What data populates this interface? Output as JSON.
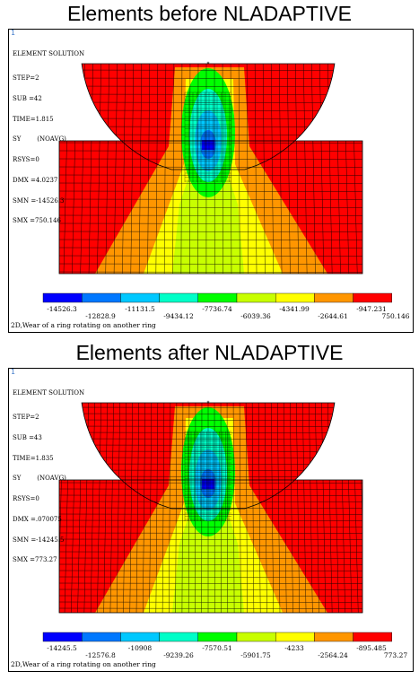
{
  "headings": {
    "before": "Elements before NLADAPTIVE",
    "after": "Elements after NLADAPTIVE"
  },
  "colors": [
    "#0000ff",
    "#0078ff",
    "#00c8ff",
    "#00ffc8",
    "#00ff00",
    "#c8ff00",
    "#ffff00",
    "#ff9600",
    "#ff0000"
  ],
  "panels": [
    {
      "frame_number": "1",
      "info": {
        "title": "ELEMENT SOLUTION",
        "step": "STEP=2",
        "sub": "SUB =42",
        "time": "TIME=1.815",
        "sy": "SY        (NOAVG)",
        "rsys": "RSYS=0",
        "dmx": "DMX =4.0237",
        "smn": "SMN =-14526.3",
        "smx": "SMX =750.146"
      },
      "legend_top": [
        "-14526.3",
        "-11131.5",
        "-7736.74",
        "-4341.99",
        "-947.231"
      ],
      "legend_bottom": [
        "-12828.9",
        "-9434.12",
        "-6039.36",
        "-2644.61",
        "750.146"
      ],
      "caption": "2D,Wear of a ring rotating on another ring"
    },
    {
      "frame_number": "1",
      "info": {
        "title": "ELEMENT SOLUTION",
        "step": "STEP=2",
        "sub": "SUB =43",
        "time": "TIME=1.835",
        "sy": "SY        (NOAVG)",
        "rsys": "RSYS=0",
        "dmx": "DMX =.070075",
        "smn": "SMN =-14245.5",
        "smx": "SMX =773.27"
      },
      "legend_top": [
        "-14245.5",
        "-10908",
        "-7570.51",
        "-4233",
        "-895.485"
      ],
      "legend_bottom": [
        "-12576.8",
        "-9239.26",
        "-5901.75",
        "-2564.24",
        "773.27"
      ],
      "caption": "2D,Wear of a ring rotating on another ring"
    }
  ]
}
